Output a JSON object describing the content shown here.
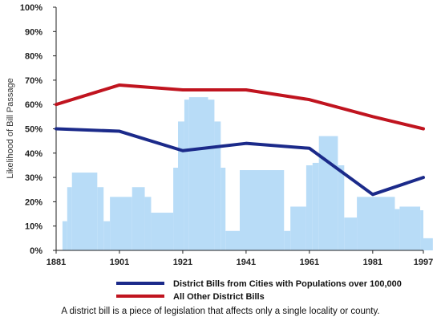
{
  "chart_data": {
    "type": "line",
    "title": "",
    "ylabel": "Likelihood of Bill Passage",
    "xlabel": "",
    "xlim": [
      1881,
      1997
    ],
    "ylim": [
      0,
      100
    ],
    "x_ticks": [
      "1881",
      "1901",
      "1921",
      "1941",
      "1961",
      "1981",
      "1997"
    ],
    "y_ticks": [
      "0%",
      "10%",
      "20%",
      "30%",
      "40%",
      "50%",
      "60%",
      "70%",
      "80%",
      "90%",
      "100%"
    ],
    "series": [
      {
        "name": "District Bills from Cities with Populations over 100,000",
        "color": "#1b2a8a",
        "x": [
          1881,
          1901,
          1921,
          1941,
          1961,
          1981,
          1997
        ],
        "y": [
          50,
          49,
          41,
          44,
          42,
          23,
          30
        ]
      },
      {
        "name": "All Other District Bills",
        "color": "#c0141f",
        "x": [
          1881,
          1901,
          1921,
          1941,
          1961,
          1981,
          1997
        ],
        "y": [
          60,
          68,
          66,
          66,
          62,
          55,
          50
        ]
      }
    ],
    "background_histogram": {
      "color": "#b8dcf7",
      "bars": [
        {
          "x0": 1883,
          "x1": 1884.5,
          "y": 12
        },
        {
          "x0": 1884.5,
          "x1": 1886,
          "y": 26
        },
        {
          "x0": 1886,
          "x1": 1894,
          "y": 32
        },
        {
          "x0": 1894,
          "x1": 1896,
          "y": 26
        },
        {
          "x0": 1896,
          "x1": 1898,
          "y": 12
        },
        {
          "x0": 1898,
          "x1": 1905,
          "y": 22
        },
        {
          "x0": 1905,
          "x1": 1909,
          "y": 26
        },
        {
          "x0": 1909,
          "x1": 1911,
          "y": 22
        },
        {
          "x0": 1911,
          "x1": 1918,
          "y": 15.5
        },
        {
          "x0": 1918,
          "x1": 1919.5,
          "y": 34
        },
        {
          "x0": 1919.5,
          "x1": 1921.5,
          "y": 53
        },
        {
          "x0": 1921.5,
          "x1": 1923,
          "y": 62
        },
        {
          "x0": 1923,
          "x1": 1929,
          "y": 63
        },
        {
          "x0": 1929,
          "x1": 1931,
          "y": 62
        },
        {
          "x0": 1931,
          "x1": 1933,
          "y": 53
        },
        {
          "x0": 1933,
          "x1": 1934.5,
          "y": 34
        },
        {
          "x0": 1934.5,
          "x1": 1939,
          "y": 8
        },
        {
          "x0": 1939,
          "x1": 1953,
          "y": 33
        },
        {
          "x0": 1953,
          "x1": 1955,
          "y": 8
        },
        {
          "x0": 1955,
          "x1": 1960,
          "y": 18
        },
        {
          "x0": 1960,
          "x1": 1962,
          "y": 35
        },
        {
          "x0": 1962,
          "x1": 1964,
          "y": 36
        },
        {
          "x0": 1964,
          "x1": 1970,
          "y": 47
        },
        {
          "x0": 1970,
          "x1": 1972,
          "y": 35
        },
        {
          "x0": 1972,
          "x1": 1976,
          "y": 13.5
        },
        {
          "x0": 1976,
          "x1": 1988,
          "y": 22
        },
        {
          "x0": 1988,
          "x1": 1989.5,
          "y": 17
        },
        {
          "x0": 1989.5,
          "x1": 1996,
          "y": 18
        },
        {
          "x0": 1996,
          "x1": 1997,
          "y": 16.5
        },
        {
          "x0": 1997,
          "x1": 2000,
          "y": 5
        }
      ]
    },
    "legend": {
      "position": "bottom"
    },
    "caption": "A district bill is a piece of legislation that affects only a single locality or county."
  }
}
